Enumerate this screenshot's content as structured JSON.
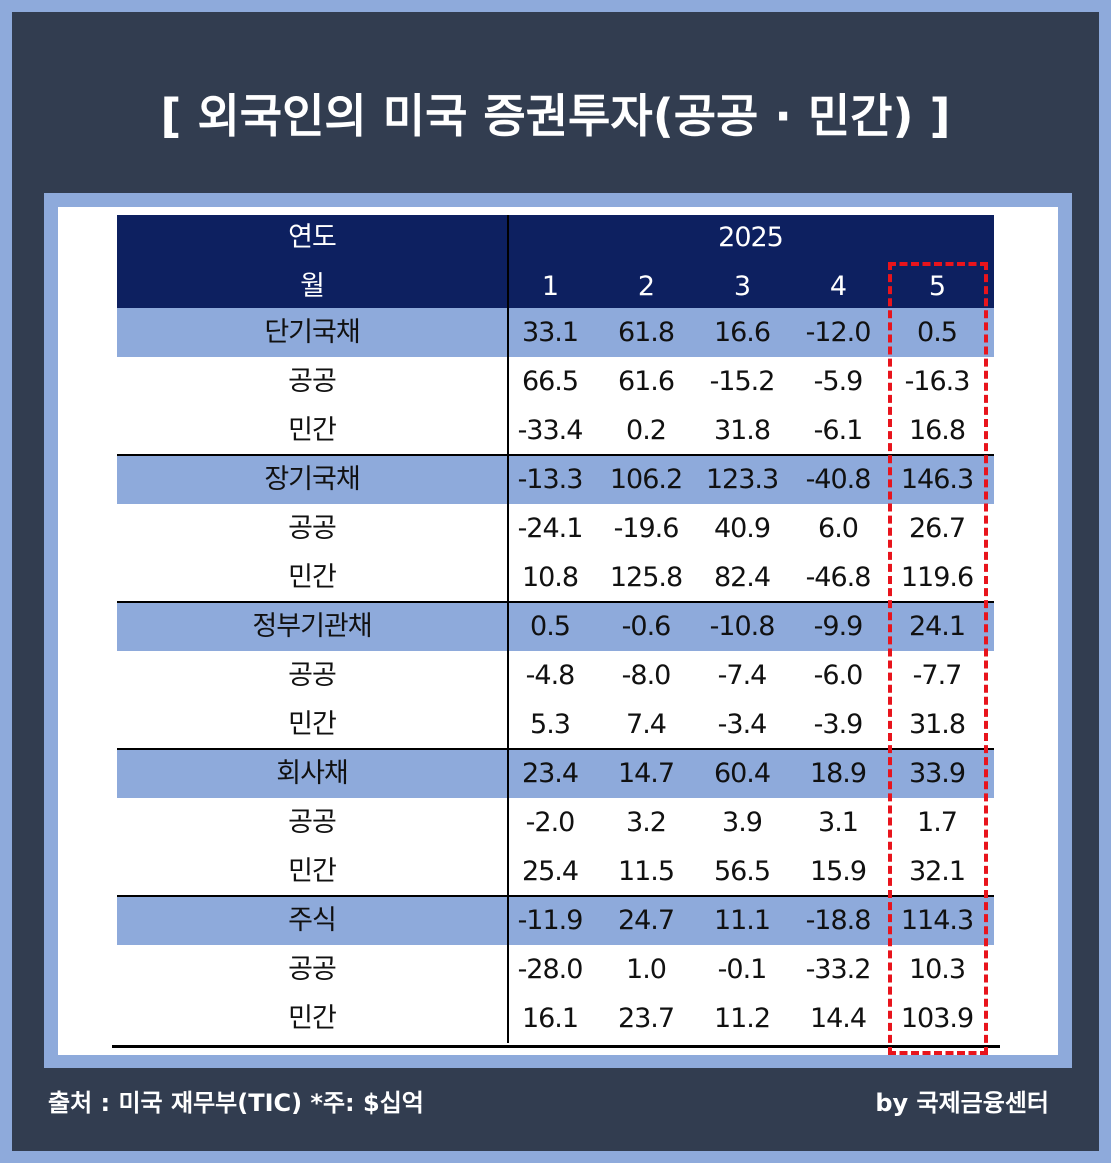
{
  "header": {
    "title": "[ 외국인의 미국 증권투자(공공 · 민간) ]"
  },
  "table": {
    "year_label": "연도",
    "year": "2025",
    "month_label": "월",
    "months": [
      "1",
      "2",
      "3",
      "4",
      "5"
    ],
    "groups": [
      {
        "label": "단기국채",
        "values": [
          "33.1",
          "61.8",
          "16.6",
          "-12.0",
          "0.5"
        ],
        "subrows": [
          {
            "label": "공공",
            "values": [
              "66.5",
              "61.6",
              "-15.2",
              "-5.9",
              "-16.3"
            ]
          },
          {
            "label": "민간",
            "values": [
              "-33.4",
              "0.2",
              "31.8",
              "-6.1",
              "16.8"
            ]
          }
        ]
      },
      {
        "label": "장기국채",
        "values": [
          "-13.3",
          "106.2",
          "123.3",
          "-40.8",
          "146.3"
        ],
        "subrows": [
          {
            "label": "공공",
            "values": [
              "-24.1",
              "-19.6",
              "40.9",
              "6.0",
              "26.7"
            ]
          },
          {
            "label": "민간",
            "values": [
              "10.8",
              "125.8",
              "82.4",
              "-46.8",
              "119.6"
            ]
          }
        ]
      },
      {
        "label": "정부기관채",
        "values": [
          "0.5",
          "-0.6",
          "-10.8",
          "-9.9",
          "24.1"
        ],
        "subrows": [
          {
            "label": "공공",
            "values": [
              "-4.8",
              "-8.0",
              "-7.4",
              "-6.0",
              "-7.7"
            ]
          },
          {
            "label": "민간",
            "values": [
              "5.3",
              "7.4",
              "-3.4",
              "-3.9",
              "31.8"
            ]
          }
        ]
      },
      {
        "label": "회사채",
        "values": [
          "23.4",
          "14.7",
          "60.4",
          "18.9",
          "33.9"
        ],
        "subrows": [
          {
            "label": "공공",
            "values": [
              "-2.0",
              "3.2",
              "3.9",
              "3.1",
              "1.7"
            ]
          },
          {
            "label": "민간",
            "values": [
              "25.4",
              "11.5",
              "56.5",
              "15.9",
              "32.1"
            ]
          }
        ]
      },
      {
        "label": "주식",
        "values": [
          "-11.9",
          "24.7",
          "11.1",
          "-18.8",
          "114.3"
        ],
        "subrows": [
          {
            "label": "공공",
            "values": [
              "-28.0",
              "1.0",
              "-0.1",
              "-33.2",
              "10.3"
            ]
          },
          {
            "label": "민간",
            "values": [
              "16.1",
              "23.7",
              "11.2",
              "14.4",
              "103.9"
            ]
          }
        ]
      }
    ]
  },
  "footer": {
    "source": "출처 : 미국 재무부(TIC) *주: $십억",
    "brand": "by 국제금융센터"
  }
}
